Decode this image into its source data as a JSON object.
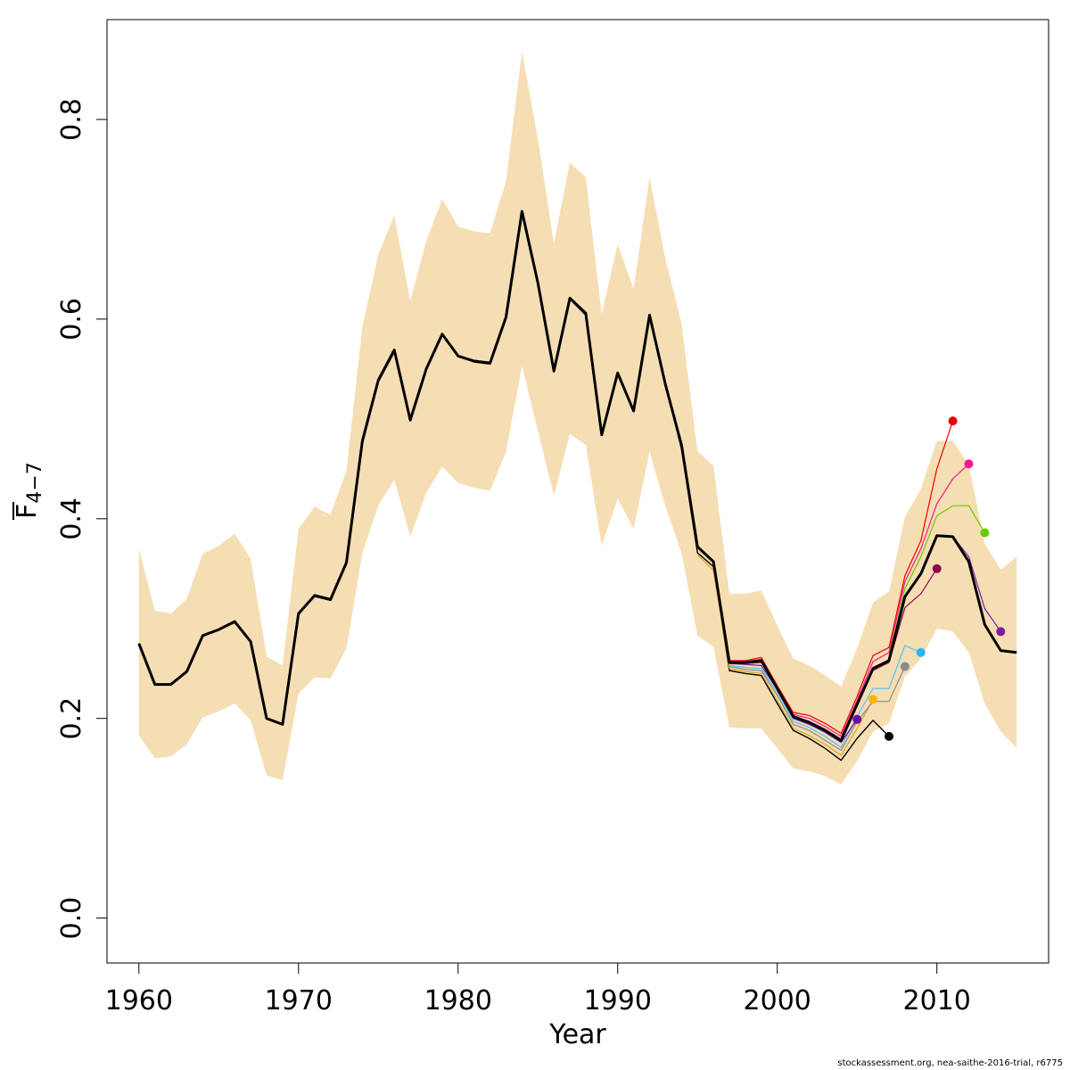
{
  "chart_data": {
    "type": "line",
    "xlabel": "Year",
    "ylabel_main": "F",
    "ylabel_sub": "4−7",
    "xlim": [
      1958,
      2017
    ],
    "ylim": [
      -0.045,
      0.9
    ],
    "x_ticks": [
      1960,
      1970,
      1980,
      1990,
      2000,
      2010
    ],
    "x_tick_labels": [
      "1960",
      "1970",
      "1980",
      "1990",
      "2000",
      "2010"
    ],
    "y_ticks": [
      0.0,
      0.2,
      0.4,
      0.6,
      0.8
    ],
    "y_tick_labels": [
      "0.0",
      "0.2",
      "0.4",
      "0.6",
      "0.8"
    ],
    "grid": false,
    "band_color": "#F5DEB3",
    "band": {
      "x": [
        1960,
        1961,
        1962,
        1963,
        1964,
        1965,
        1966,
        1967,
        1968,
        1969,
        1970,
        1971,
        1972,
        1973,
        1974,
        1975,
        1976,
        1977,
        1978,
        1979,
        1980,
        1981,
        1982,
        1983,
        1984,
        1985,
        1986,
        1987,
        1988,
        1989,
        1990,
        1991,
        1992,
        1993,
        1994,
        1995,
        1996,
        1997,
        1998,
        1999,
        2000,
        2001,
        2002,
        2003,
        2004,
        2005,
        2006,
        2007,
        2008,
        2009,
        2010,
        2011,
        2012,
        2013,
        2014,
        2015
      ],
      "upper": [
        0.37,
        0.308,
        0.305,
        0.32,
        0.365,
        0.373,
        0.385,
        0.36,
        0.262,
        0.253,
        0.39,
        0.412,
        0.404,
        0.448,
        0.592,
        0.665,
        0.704,
        0.618,
        0.678,
        0.72,
        0.693,
        0.688,
        0.686,
        0.738,
        0.868,
        0.78,
        0.676,
        0.757,
        0.742,
        0.605,
        0.675,
        0.63,
        0.742,
        0.66,
        0.596,
        0.468,
        0.453,
        0.325,
        0.325,
        0.328,
        0.293,
        0.26,
        0.253,
        0.243,
        0.232,
        0.27,
        0.316,
        0.327,
        0.402,
        0.43,
        0.478,
        0.478,
        0.454,
        0.375,
        0.349,
        0.362
      ],
      "lower": [
        0.183,
        0.16,
        0.162,
        0.174,
        0.201,
        0.207,
        0.215,
        0.198,
        0.143,
        0.138,
        0.225,
        0.241,
        0.24,
        0.27,
        0.366,
        0.413,
        0.439,
        0.382,
        0.426,
        0.452,
        0.436,
        0.431,
        0.428,
        0.467,
        0.553,
        0.488,
        0.423,
        0.485,
        0.474,
        0.373,
        0.42,
        0.39,
        0.467,
        0.412,
        0.366,
        0.283,
        0.272,
        0.191,
        0.19,
        0.19,
        0.17,
        0.15,
        0.147,
        0.142,
        0.134,
        0.157,
        0.187,
        0.195,
        0.242,
        0.26,
        0.29,
        0.287,
        0.266,
        0.215,
        0.187,
        0.17
      ]
    },
    "series": [
      {
        "color": "#000000",
        "width": 1.4,
        "x": [
          1960,
          1961,
          1962,
          1963,
          1964,
          1965,
          1966,
          1967,
          1968,
          1969,
          1970,
          1971,
          1972,
          1973,
          1974,
          1975,
          1976,
          1977,
          1978,
          1979,
          1980,
          1981,
          1982,
          1983,
          1984,
          1985,
          1986,
          1987,
          1988,
          1989,
          1990,
          1991,
          1992,
          1993,
          1994,
          1995,
          1996,
          1997,
          1998,
          1999,
          2000,
          2001,
          2002,
          2003,
          2004,
          2005,
          2006,
          2007
        ],
        "y": [
          0.275,
          0.234,
          0.234,
          0.247,
          0.283,
          0.289,
          0.296,
          0.276,
          0.2,
          0.194,
          0.305,
          0.324,
          0.32,
          0.355,
          0.475,
          0.537,
          0.567,
          0.498,
          0.549,
          0.584,
          0.563,
          0.557,
          0.555,
          0.602,
          0.708,
          0.636,
          0.547,
          0.62,
          0.604,
          0.484,
          0.545,
          0.508,
          0.603,
          0.534,
          0.47,
          0.366,
          0.352,
          0.248,
          0.245,
          0.243,
          0.215,
          0.188,
          0.18,
          0.17,
          0.158,
          0.18,
          0.198,
          0.182
        ]
      },
      {
        "color": "#DAA520",
        "width": 1.2,
        "x": [
          1995,
          1996,
          1997,
          1998,
          1999,
          2000,
          2001,
          2002,
          2003,
          2004,
          2005,
          2006
        ],
        "y": [
          0.364,
          0.348,
          0.25,
          0.247,
          0.245,
          0.218,
          0.19,
          0.183,
          0.174,
          0.163,
          0.19,
          0.219
        ]
      },
      {
        "color": "#8B8989",
        "width": 1.2,
        "x": [
          1997,
          1998,
          1999,
          2000,
          2001,
          2002,
          2003,
          2004,
          2005,
          2006,
          2007,
          2008
        ],
        "y": [
          0.252,
          0.249,
          0.248,
          0.223,
          0.194,
          0.188,
          0.178,
          0.168,
          0.197,
          0.217,
          0.217,
          0.252
        ]
      },
      {
        "color": "#4FC3F7",
        "width": 1.2,
        "x": [
          1997,
          1998,
          1999,
          2000,
          2001,
          2002,
          2003,
          2004,
          2005,
          2006,
          2007,
          2008,
          2009
        ],
        "y": [
          0.253,
          0.251,
          0.25,
          0.226,
          0.197,
          0.191,
          0.182,
          0.171,
          0.202,
          0.23,
          0.23,
          0.273,
          0.266
        ]
      },
      {
        "color": "#6A0DAD",
        "width": 1.2,
        "x": [
          1997,
          1998,
          1999,
          2000,
          2001,
          2002,
          2003,
          2004,
          2005
        ],
        "y": [
          0.255,
          0.254,
          0.253,
          0.229,
          0.2,
          0.194,
          0.186,
          0.176,
          0.199
        ]
      },
      {
        "color": "#8B0A50",
        "width": 1.2,
        "x": [
          1997,
          1998,
          1999,
          2000,
          2001,
          2002,
          2003,
          2004,
          2005,
          2006,
          2007,
          2008,
          2009,
          2010
        ],
        "y": [
          0.256,
          0.255,
          0.256,
          0.231,
          0.202,
          0.197,
          0.189,
          0.179,
          0.213,
          0.248,
          0.256,
          0.311,
          0.325,
          0.35
        ]
      },
      {
        "color": "#EE0000",
        "width": 1.2,
        "x": [
          1997,
          1998,
          1999,
          2000,
          2001,
          2002,
          2003,
          2004,
          2005,
          2006,
          2007,
          2008,
          2009,
          2010,
          2011
        ],
        "y": [
          0.258,
          0.258,
          0.261,
          0.233,
          0.206,
          0.203,
          0.195,
          0.185,
          0.222,
          0.263,
          0.271,
          0.343,
          0.378,
          0.45,
          0.498
        ]
      },
      {
        "color": "#FF1493",
        "width": 1.2,
        "x": [
          1997,
          1998,
          1999,
          2000,
          2001,
          2002,
          2003,
          2004,
          2005,
          2006,
          2007,
          2008,
          2009,
          2010,
          2011,
          2012
        ],
        "y": [
          0.257,
          0.257,
          0.259,
          0.232,
          0.204,
          0.2,
          0.192,
          0.182,
          0.218,
          0.257,
          0.266,
          0.337,
          0.37,
          0.415,
          0.44,
          0.455
        ]
      },
      {
        "color": "#66CC00",
        "width": 1.2,
        "x": [
          2007,
          2008,
          2009,
          2010,
          2011,
          2012,
          2013
        ],
        "y": [
          0.262,
          0.33,
          0.362,
          0.403,
          0.413,
          0.413,
          0.386
        ]
      },
      {
        "color": "#7B1FA2",
        "width": 1.2,
        "x": [
          2008,
          2009,
          2010,
          2011,
          2012,
          2013,
          2014
        ],
        "y": [
          0.322,
          0.345,
          0.383,
          0.382,
          0.362,
          0.31,
          0.287
        ]
      },
      {
        "color": "#000000",
        "width": 3,
        "x": [
          1960,
          1961,
          1962,
          1963,
          1964,
          1965,
          1966,
          1967,
          1968,
          1969,
          1970,
          1971,
          1972,
          1973,
          1974,
          1975,
          1976,
          1977,
          1978,
          1979,
          1980,
          1981,
          1982,
          1983,
          1984,
          1985,
          1986,
          1987,
          1988,
          1989,
          1990,
          1991,
          1992,
          1993,
          1994,
          1995,
          1996,
          1997,
          1998,
          1999,
          2000,
          2001,
          2002,
          2003,
          2004,
          2005,
          2006,
          2007,
          2008,
          2009,
          2010,
          2011,
          2012,
          2013,
          2014,
          2015
        ],
        "y": [
          0.275,
          0.234,
          0.234,
          0.247,
          0.283,
          0.289,
          0.297,
          0.277,
          0.2,
          0.194,
          0.305,
          0.323,
          0.319,
          0.356,
          0.478,
          0.539,
          0.569,
          0.499,
          0.55,
          0.585,
          0.563,
          0.558,
          0.556,
          0.602,
          0.708,
          0.636,
          0.548,
          0.621,
          0.606,
          0.484,
          0.546,
          0.508,
          0.604,
          0.534,
          0.474,
          0.372,
          0.357,
          0.256,
          0.256,
          0.258,
          0.23,
          0.202,
          0.196,
          0.188,
          0.178,
          0.214,
          0.25,
          0.258,
          0.322,
          0.345,
          0.383,
          0.382,
          0.357,
          0.294,
          0.268,
          0.266
        ]
      }
    ],
    "endpoints": [
      {
        "x": 2005,
        "y": 0.199,
        "color": "#6A0DAD"
      },
      {
        "x": 2006,
        "y": 0.219,
        "color": "#FFB300"
      },
      {
        "x": 2007,
        "y": 0.182,
        "color": "#000000"
      },
      {
        "x": 2008,
        "y": 0.252,
        "color": "#8B8989"
      },
      {
        "x": 2009,
        "y": 0.266,
        "color": "#29B6F6"
      },
      {
        "x": 2010,
        "y": 0.35,
        "color": "#8B0A50"
      },
      {
        "x": 2011,
        "y": 0.498,
        "color": "#EE0000"
      },
      {
        "x": 2012,
        "y": 0.455,
        "color": "#FF1493"
      },
      {
        "x": 2013,
        "y": 0.386,
        "color": "#66CC00"
      },
      {
        "x": 2014,
        "y": 0.287,
        "color": "#7B1FA2"
      }
    ]
  },
  "footer": {
    "text": "stockassessment.org, nea-saithe-2016-trial, r6775"
  }
}
